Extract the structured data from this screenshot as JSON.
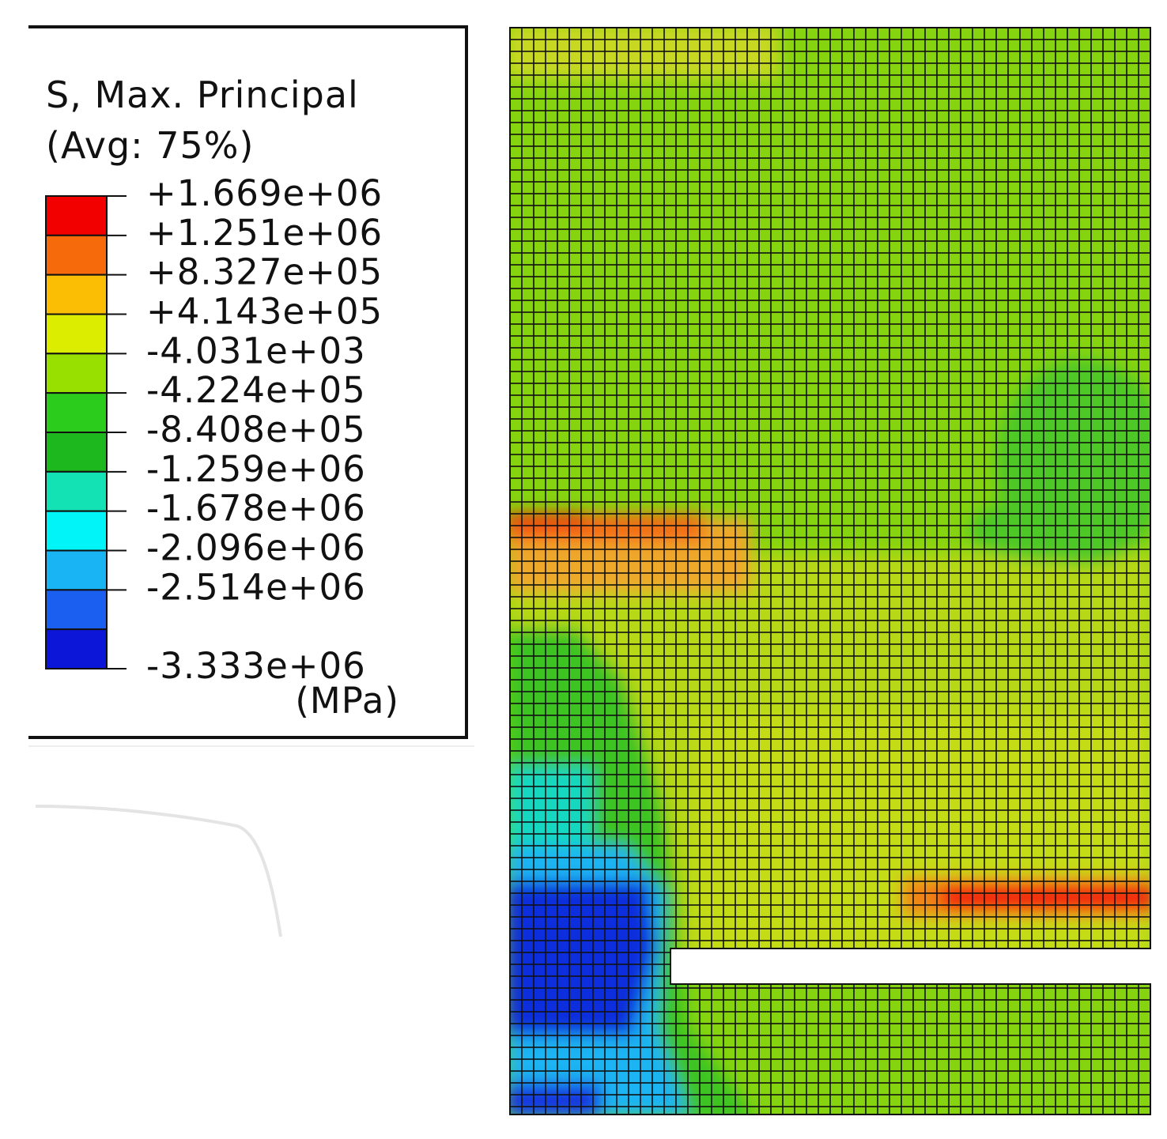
{
  "legend": {
    "title": "S, Max. Principal",
    "subtitle": "(Avg: 75%)",
    "levels": [
      "+1.669e+06",
      "+1.251e+06",
      "+8.327e+05",
      "+4.143e+05",
      "-4.031e+03",
      "-4.224e+05",
      "-8.408e+05",
      "-1.259e+06",
      "-1.678e+06",
      "-2.096e+06",
      "-2.514e+06",
      "-3.333e+06"
    ],
    "colors": [
      "#f20000",
      "#f66a0c",
      "#fbbe04",
      "#dded00",
      "#97e000",
      "#2ccc1c",
      "#1db81d",
      "#12e2b4",
      "#00f4f8",
      "#18b4f4",
      "#1a5ff0",
      "#0b16d8"
    ],
    "unit": "(MPa)"
  }
}
